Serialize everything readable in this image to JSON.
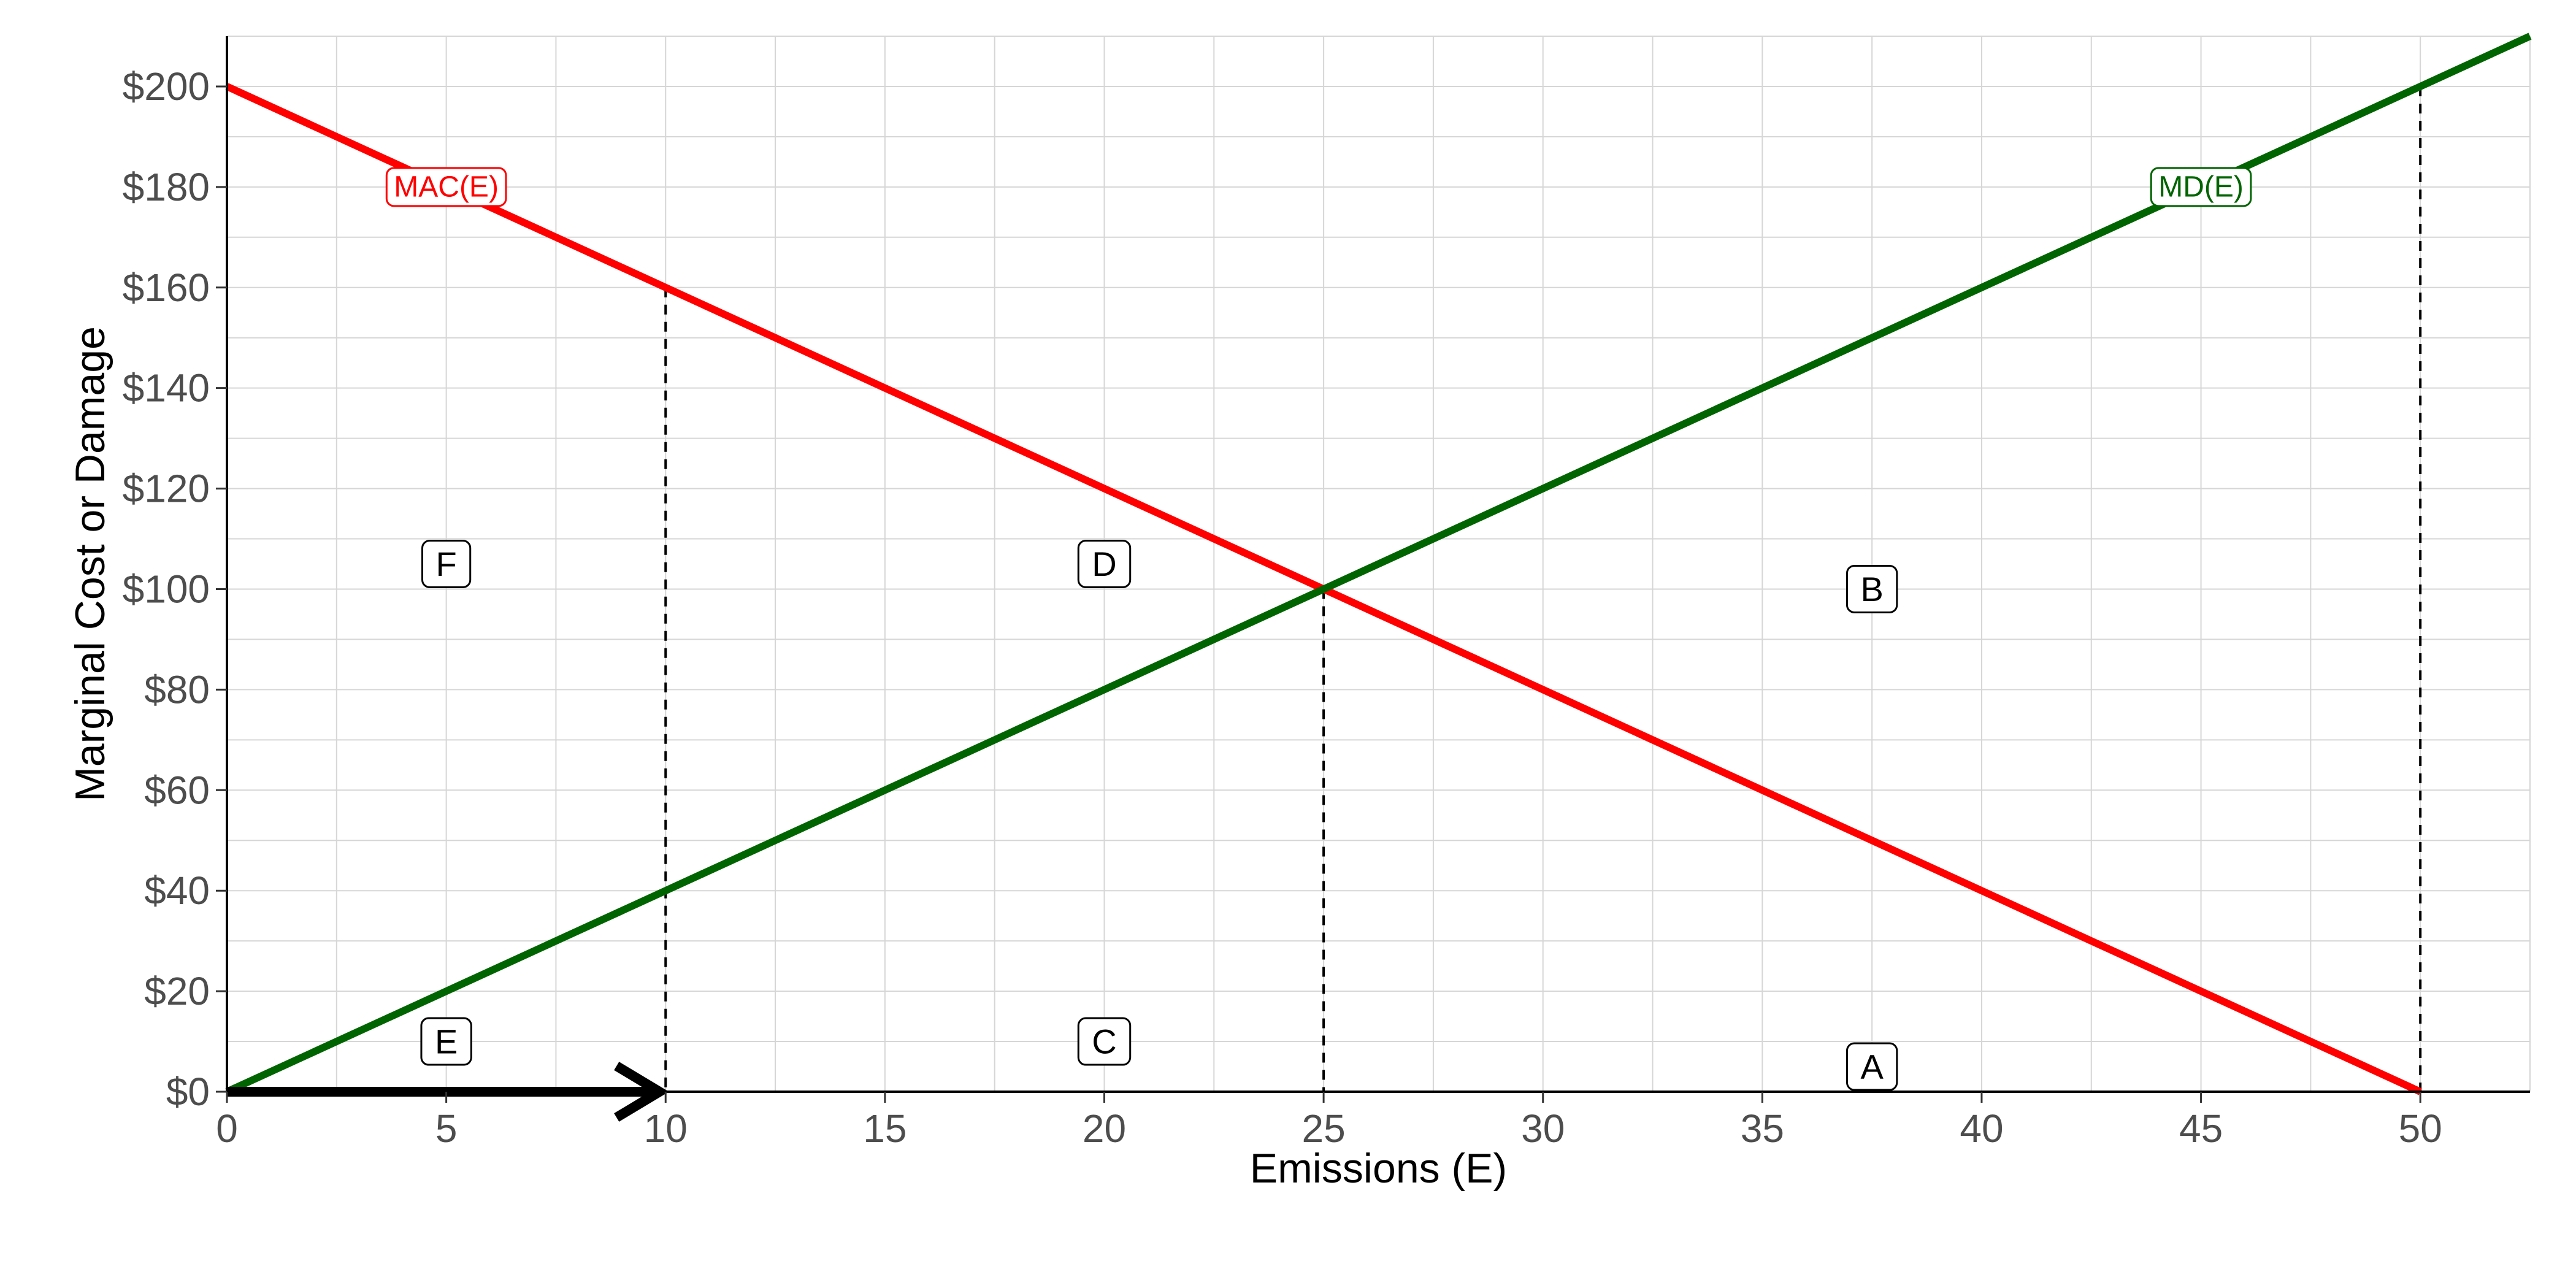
{
  "chart_data": {
    "type": "line",
    "title": "",
    "xlabel": "Emissions (E)",
    "ylabel": "Marginal Cost or Damage",
    "xlim": [
      0,
      52.5
    ],
    "ylim": [
      0,
      210
    ],
    "x_ticks": [
      0,
      5,
      10,
      15,
      20,
      25,
      30,
      35,
      40,
      45,
      50
    ],
    "y_ticks": [
      0,
      20,
      40,
      60,
      80,
      100,
      120,
      140,
      160,
      180,
      200
    ],
    "y_tick_labels": [
      "$0",
      "$20",
      "$40",
      "$60",
      "$80",
      "$100",
      "$120",
      "$140",
      "$160",
      "$180",
      "$200"
    ],
    "grid": true,
    "series": [
      {
        "name": "MAC(E)",
        "color": "#ff0000",
        "x": [
          0,
          50
        ],
        "y": [
          200,
          0
        ]
      },
      {
        "name": "MD(E)",
        "color": "#006400",
        "x": [
          0,
          52.5
        ],
        "y": [
          0,
          210
        ]
      }
    ],
    "curve_labels": [
      {
        "text": "MAC(E)",
        "x": 5,
        "y": 180,
        "color": "#ff0000"
      },
      {
        "text": "MD(E)",
        "x": 45,
        "y": 180,
        "color": "#006400"
      }
    ],
    "vertical_lines": [
      {
        "x": 10,
        "y_top": 160
      },
      {
        "x": 25,
        "y_top": 100
      },
      {
        "x": 50,
        "y_top": 200
      }
    ],
    "region_labels": [
      {
        "text": "F",
        "x": 5,
        "y": 105
      },
      {
        "text": "D",
        "x": 20,
        "y": 105
      },
      {
        "text": "B",
        "x": 37.5,
        "y": 100
      },
      {
        "text": "E",
        "x": 5,
        "y": 10
      },
      {
        "text": "C",
        "x": 20,
        "y": 10
      },
      {
        "text": "A",
        "x": 37.5,
        "y": 5
      }
    ],
    "arrow": {
      "x_start": 0,
      "x_end": 10,
      "y": 0,
      "color": "#000000"
    }
  }
}
